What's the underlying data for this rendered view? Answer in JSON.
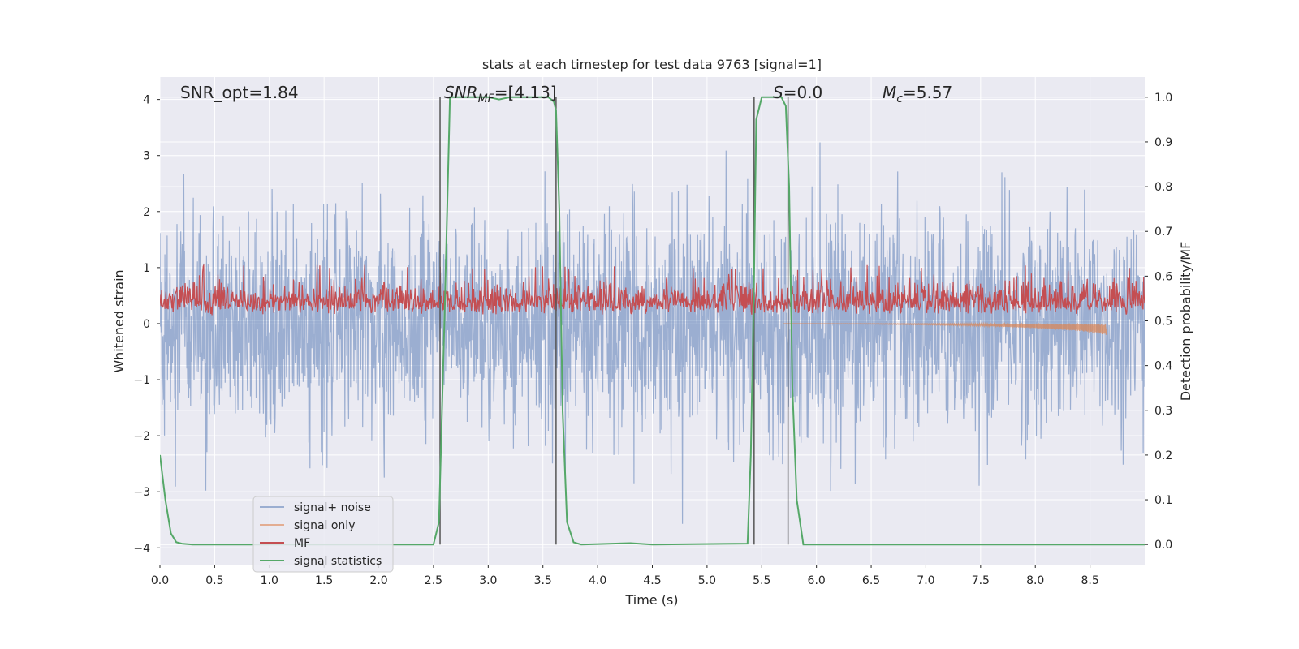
{
  "chart_data": {
    "type": "line",
    "title": "stats at each timestep for test data 9763 [signal=1]",
    "xlabel": "Time (s)",
    "ylabel": "Whitened strain",
    "y2label": "Detection probability/MF",
    "xlim": [
      0.0,
      9.0
    ],
    "ylim": [
      -4.3,
      4.4
    ],
    "y2lim": [
      -0.045,
      1.045
    ],
    "xticks": [
      0.0,
      0.5,
      1.0,
      1.5,
      2.0,
      2.5,
      3.0,
      3.5,
      4.0,
      4.5,
      5.0,
      5.5,
      6.0,
      6.5,
      7.0,
      7.5,
      8.0,
      8.5
    ],
    "yticks": [
      -4,
      -3,
      -2,
      -1,
      0,
      1,
      2,
      3,
      4
    ],
    "y2ticks": [
      0.0,
      0.1,
      0.2,
      0.3,
      0.4,
      0.5,
      0.6,
      0.7,
      0.8,
      0.9,
      1.0
    ],
    "grid": true,
    "annotations": {
      "snr_opt": "SNR_opt=1.84",
      "snr_mf_base": "SNR",
      "snr_mf_sub": "MF",
      "snr_mf_val": "=[4.13]",
      "s_base": "S",
      "s_val": "=0.0",
      "mc_base": "M",
      "mc_sub": "c",
      "mc_val": "=5.57"
    },
    "vertical_lines_x": [
      2.56,
      3.62,
      5.43,
      5.74
    ],
    "legend": {
      "location": "lower-left",
      "entries": [
        "signal+ noise",
        "signal only",
        "MF",
        "signal statistics"
      ]
    },
    "series": [
      {
        "name": "signal+ noise",
        "axis": "left",
        "color": "#4c72b0",
        "description": "whitened noisy strain, approx. zero-mean with std ~1, spiking to about +/-3.5",
        "t_range": [
          0.0,
          9.0
        ],
        "approx_std": 1.0,
        "approx_extremes": [
          -3.9,
          3.6
        ]
      },
      {
        "name": "signal only",
        "axis": "left",
        "color": "#dd8452",
        "description": "chirp signal starting ~5.7 s, growing to about -0.2 at 8.65 s",
        "points": [
          [
            5.7,
            0.0
          ],
          [
            6.5,
            -0.01
          ],
          [
            7.0,
            -0.02
          ],
          [
            7.5,
            -0.04
          ],
          [
            8.0,
            -0.08
          ],
          [
            8.4,
            -0.13
          ],
          [
            8.65,
            -0.2
          ]
        ]
      },
      {
        "name": "MF",
        "axis": "right",
        "color": "#c44e52",
        "description": "matched-filter output, noisy band between ~0.5 and ~0.6",
        "t_range": [
          0.0,
          9.0
        ],
        "band": [
          0.5,
          0.615
        ],
        "peak": 0.625
      },
      {
        "name": "signal statistics",
        "axis": "right",
        "color": "#55a868",
        "points": [
          [
            0.0,
            0.2
          ],
          [
            0.05,
            0.1
          ],
          [
            0.1,
            0.025
          ],
          [
            0.15,
            0.005
          ],
          [
            0.2,
            0.002
          ],
          [
            0.3,
            0.0
          ],
          [
            2.5,
            0.0
          ],
          [
            2.55,
            0.05
          ],
          [
            2.6,
            0.5
          ],
          [
            2.65,
            1.0
          ],
          [
            3.0,
            1.0
          ],
          [
            3.1,
            0.995
          ],
          [
            3.2,
            1.0
          ],
          [
            3.55,
            1.0
          ],
          [
            3.6,
            0.99
          ],
          [
            3.62,
            0.97
          ],
          [
            3.65,
            0.75
          ],
          [
            3.68,
            0.3
          ],
          [
            3.72,
            0.05
          ],
          [
            3.78,
            0.005
          ],
          [
            3.85,
            0.0
          ],
          [
            4.3,
            0.003
          ],
          [
            4.5,
            0.0
          ],
          [
            5.37,
            0.002
          ],
          [
            5.4,
            0.2
          ],
          [
            5.43,
            0.6
          ],
          [
            5.45,
            0.95
          ],
          [
            5.5,
            1.0
          ],
          [
            5.68,
            1.0
          ],
          [
            5.72,
            0.98
          ],
          [
            5.75,
            0.8
          ],
          [
            5.78,
            0.35
          ],
          [
            5.82,
            0.1
          ],
          [
            5.88,
            0.0
          ],
          [
            6.5,
            0.0
          ],
          [
            9.0,
            0.0
          ]
        ]
      }
    ]
  }
}
